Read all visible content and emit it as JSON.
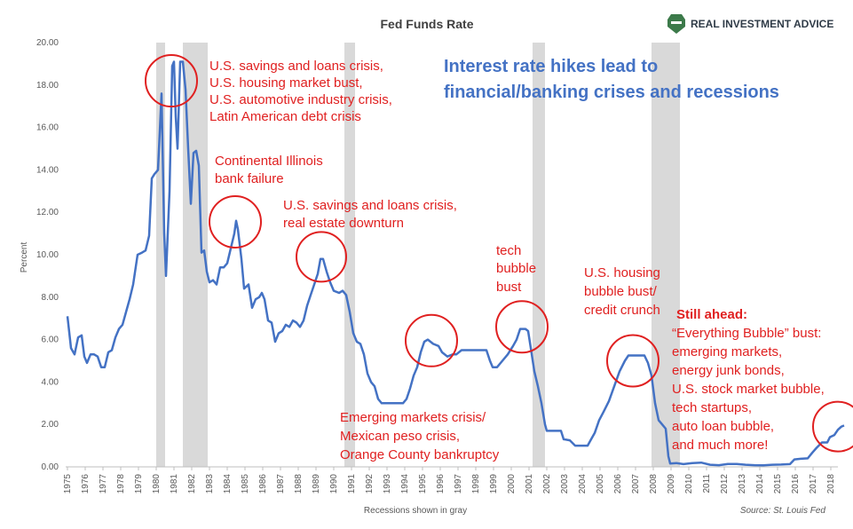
{
  "chart_data": {
    "type": "line",
    "title": "Fed Funds Rate",
    "ylabel": "Percent",
    "xlabel": "Recessions shown in gray",
    "source": "Source: St. Louis Fed",
    "brand": "REAL INVESTMENT ADVICE",
    "brand_icon": "shield-icon",
    "headline": [
      "Interest rate hikes lead to",
      "financial/banking crises and recessions"
    ],
    "ylim": [
      0,
      20
    ],
    "xlim": [
      1975,
      2019
    ],
    "y_ticks": [
      "0.00",
      "2.00",
      "4.00",
      "6.00",
      "8.00",
      "10.00",
      "12.00",
      "14.00",
      "16.00",
      "18.00",
      "20.00"
    ],
    "x_ticks": [
      "1975",
      "1976",
      "1977",
      "1978",
      "1979",
      "1980",
      "1981",
      "1982",
      "1983",
      "1984",
      "1985",
      "1986",
      "1987",
      "1988",
      "1989",
      "1990",
      "1991",
      "1992",
      "1993",
      "1994",
      "1995",
      "1996",
      "1997",
      "1998",
      "1999",
      "2000",
      "2001",
      "2002",
      "2003",
      "2004",
      "2005",
      "2006",
      "2007",
      "2008",
      "2009",
      "2010",
      "2011",
      "2012",
      "2013",
      "2014",
      "2015",
      "2016",
      "2017",
      "2018"
    ],
    "grid": false,
    "line_color": "#4472c4",
    "recession_color": "#d9d9d9",
    "annotation_color": "#e02020",
    "recessions": [
      {
        "start": 1980.0,
        "end": 1980.5
      },
      {
        "start": 1981.5,
        "end": 1982.9
      },
      {
        "start": 1990.6,
        "end": 1991.2
      },
      {
        "start": 2001.2,
        "end": 2001.9
      },
      {
        "start": 2007.9,
        "end": 2009.5
      }
    ],
    "series": [
      {
        "values": [
          [
            1975.0,
            7.1
          ],
          [
            1975.2,
            5.6
          ],
          [
            1975.4,
            5.3
          ],
          [
            1975.6,
            6.1
          ],
          [
            1975.8,
            6.2
          ],
          [
            1975.95,
            5.2
          ],
          [
            1976.1,
            4.9
          ],
          [
            1976.3,
            5.3
          ],
          [
            1976.5,
            5.3
          ],
          [
            1976.7,
            5.2
          ],
          [
            1976.9,
            4.7
          ],
          [
            1977.1,
            4.7
          ],
          [
            1977.3,
            5.4
          ],
          [
            1977.5,
            5.5
          ],
          [
            1977.7,
            6.1
          ],
          [
            1977.9,
            6.5
          ],
          [
            1978.1,
            6.7
          ],
          [
            1978.3,
            7.3
          ],
          [
            1978.5,
            7.9
          ],
          [
            1978.7,
            8.6
          ],
          [
            1978.95,
            10.0
          ],
          [
            1979.2,
            10.1
          ],
          [
            1979.4,
            10.2
          ],
          [
            1979.6,
            10.9
          ],
          [
            1979.75,
            13.6
          ],
          [
            1979.9,
            13.8
          ],
          [
            1980.1,
            14.0
          ],
          [
            1980.3,
            17.6
          ],
          [
            1980.45,
            11.0
          ],
          [
            1980.55,
            9.0
          ],
          [
            1980.75,
            13.0
          ],
          [
            1980.9,
            18.9
          ],
          [
            1981.0,
            19.1
          ],
          [
            1981.1,
            16.5
          ],
          [
            1981.2,
            15.0
          ],
          [
            1981.35,
            19.1
          ],
          [
            1981.5,
            19.1
          ],
          [
            1981.65,
            17.8
          ],
          [
            1981.8,
            15.0
          ],
          [
            1981.95,
            12.4
          ],
          [
            1982.1,
            14.8
          ],
          [
            1982.25,
            14.9
          ],
          [
            1982.4,
            14.2
          ],
          [
            1982.55,
            10.1
          ],
          [
            1982.7,
            10.2
          ],
          [
            1982.85,
            9.2
          ],
          [
            1983.0,
            8.7
          ],
          [
            1983.2,
            8.8
          ],
          [
            1983.4,
            8.6
          ],
          [
            1983.6,
            9.4
          ],
          [
            1983.8,
            9.4
          ],
          [
            1984.0,
            9.6
          ],
          [
            1984.2,
            10.3
          ],
          [
            1984.4,
            11.0
          ],
          [
            1984.5,
            11.6
          ],
          [
            1984.6,
            11.2
          ],
          [
            1984.8,
            9.8
          ],
          [
            1984.95,
            8.4
          ],
          [
            1985.2,
            8.6
          ],
          [
            1985.4,
            7.5
          ],
          [
            1985.6,
            7.9
          ],
          [
            1985.8,
            8.0
          ],
          [
            1985.95,
            8.2
          ],
          [
            1986.1,
            7.9
          ],
          [
            1986.3,
            6.9
          ],
          [
            1986.5,
            6.8
          ],
          [
            1986.7,
            5.9
          ],
          [
            1986.9,
            6.3
          ],
          [
            1987.1,
            6.4
          ],
          [
            1987.3,
            6.7
          ],
          [
            1987.5,
            6.6
          ],
          [
            1987.7,
            6.9
          ],
          [
            1987.9,
            6.8
          ],
          [
            1988.1,
            6.6
          ],
          [
            1988.3,
            6.9
          ],
          [
            1988.5,
            7.6
          ],
          [
            1988.7,
            8.1
          ],
          [
            1988.9,
            8.6
          ],
          [
            1989.1,
            9.1
          ],
          [
            1989.25,
            9.8
          ],
          [
            1989.4,
            9.8
          ],
          [
            1989.6,
            9.2
          ],
          [
            1989.8,
            8.7
          ],
          [
            1990.0,
            8.3
          ],
          [
            1990.3,
            8.2
          ],
          [
            1990.5,
            8.3
          ],
          [
            1990.7,
            8.1
          ],
          [
            1990.9,
            7.3
          ],
          [
            1991.1,
            6.3
          ],
          [
            1991.3,
            5.9
          ],
          [
            1991.5,
            5.8
          ],
          [
            1991.7,
            5.3
          ],
          [
            1991.9,
            4.4
          ],
          [
            1992.1,
            4.0
          ],
          [
            1992.3,
            3.8
          ],
          [
            1992.5,
            3.2
          ],
          [
            1992.7,
            3.0
          ],
          [
            1992.9,
            3.0
          ],
          [
            1993.1,
            3.0
          ],
          [
            1993.5,
            3.0
          ],
          [
            1993.9,
            3.0
          ],
          [
            1994.1,
            3.2
          ],
          [
            1994.3,
            3.7
          ],
          [
            1994.5,
            4.3
          ],
          [
            1994.7,
            4.7
          ],
          [
            1994.9,
            5.4
          ],
          [
            1995.1,
            5.9
          ],
          [
            1995.3,
            6.0
          ],
          [
            1995.6,
            5.8
          ],
          [
            1995.9,
            5.7
          ],
          [
            1996.1,
            5.4
          ],
          [
            1996.4,
            5.2
          ],
          [
            1996.7,
            5.3
          ],
          [
            1996.9,
            5.3
          ],
          [
            1997.2,
            5.5
          ],
          [
            1997.6,
            5.5
          ],
          [
            1997.9,
            5.5
          ],
          [
            1998.2,
            5.5
          ],
          [
            1998.6,
            5.5
          ],
          [
            1998.8,
            5.0
          ],
          [
            1998.95,
            4.7
          ],
          [
            1999.2,
            4.7
          ],
          [
            1999.5,
            5.0
          ],
          [
            1999.8,
            5.3
          ],
          [
            2000.1,
            5.7
          ],
          [
            2000.3,
            6.0
          ],
          [
            2000.5,
            6.5
          ],
          [
            2000.8,
            6.5
          ],
          [
            2000.95,
            6.4
          ],
          [
            2001.1,
            5.6
          ],
          [
            2001.3,
            4.5
          ],
          [
            2001.5,
            3.8
          ],
          [
            2001.7,
            3.0
          ],
          [
            2001.9,
            2.0
          ],
          [
            2002.0,
            1.7
          ],
          [
            2002.4,
            1.7
          ],
          [
            2002.8,
            1.7
          ],
          [
            2002.95,
            1.3
          ],
          [
            2003.3,
            1.25
          ],
          [
            2003.6,
            1.0
          ],
          [
            2003.9,
            1.0
          ],
          [
            2004.3,
            1.0
          ],
          [
            2004.5,
            1.3
          ],
          [
            2004.7,
            1.6
          ],
          [
            2004.95,
            2.2
          ],
          [
            2005.2,
            2.6
          ],
          [
            2005.5,
            3.1
          ],
          [
            2005.8,
            3.8
          ],
          [
            2006.1,
            4.5
          ],
          [
            2006.4,
            5.0
          ],
          [
            2006.6,
            5.25
          ],
          [
            2006.9,
            5.25
          ],
          [
            2007.2,
            5.25
          ],
          [
            2007.5,
            5.25
          ],
          [
            2007.7,
            4.9
          ],
          [
            2007.9,
            4.3
          ],
          [
            2008.1,
            3.0
          ],
          [
            2008.3,
            2.2
          ],
          [
            2008.5,
            2.0
          ],
          [
            2008.7,
            1.8
          ],
          [
            2008.85,
            0.5
          ],
          [
            2008.95,
            0.16
          ],
          [
            2009.3,
            0.18
          ],
          [
            2009.7,
            0.13
          ],
          [
            2010.2,
            0.18
          ],
          [
            2010.7,
            0.2
          ],
          [
            2011.2,
            0.1
          ],
          [
            2011.7,
            0.08
          ],
          [
            2012.2,
            0.14
          ],
          [
            2012.7,
            0.14
          ],
          [
            2013.2,
            0.1
          ],
          [
            2013.7,
            0.08
          ],
          [
            2014.2,
            0.07
          ],
          [
            2014.7,
            0.1
          ],
          [
            2015.2,
            0.11
          ],
          [
            2015.7,
            0.13
          ],
          [
            2015.95,
            0.35
          ],
          [
            2016.3,
            0.38
          ],
          [
            2016.7,
            0.4
          ],
          [
            2016.95,
            0.66
          ],
          [
            2017.2,
            0.9
          ],
          [
            2017.5,
            1.15
          ],
          [
            2017.8,
            1.15
          ],
          [
            2017.95,
            1.4
          ],
          [
            2018.2,
            1.5
          ],
          [
            2018.4,
            1.75
          ],
          [
            2018.6,
            1.9
          ],
          [
            2018.75,
            1.95
          ]
        ]
      }
    ],
    "annotations": [
      {
        "lines": [
          "U.S. savings and loans crisis,",
          "U.S. housing market bust,",
          "U.S. automotive industry crisis,",
          "Latin American debt crisis"
        ],
        "style": "normal"
      },
      {
        "lines": [
          "Continental Illinois",
          "bank failure"
        ],
        "style": "normal"
      },
      {
        "lines": [
          "U.S. savings and loans crisis,",
          "real estate downturn"
        ],
        "style": "normal"
      },
      {
        "lines": [
          "tech",
          "bubble",
          "bust"
        ],
        "style": "normal"
      },
      {
        "lines": [
          "U.S. housing",
          "bubble bust/",
          "credit crunch"
        ],
        "style": "normal"
      },
      {
        "lines": [
          "Emerging markets crisis/",
          "Mexican peso crisis,",
          "Orange County bankruptcy"
        ],
        "style": "normal"
      },
      {
        "lines": [
          "Still ahead:"
        ],
        "style": "bold"
      },
      {
        "lines": [
          "“Everything Bubble” bust:",
          "emerging markets,",
          "energy junk bonds,",
          "U.S. stock market bubble,",
          "tech startups,",
          "auto loan bubble,",
          "and much more!"
        ],
        "style": "normal"
      }
    ]
  }
}
